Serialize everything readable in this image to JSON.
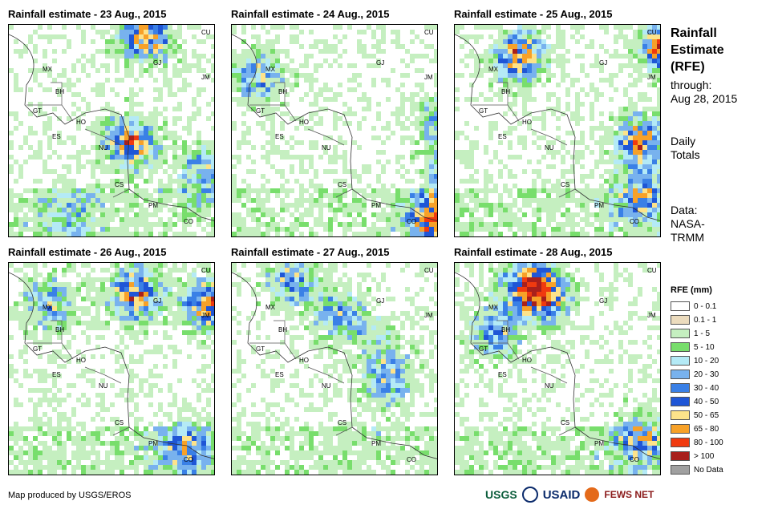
{
  "panels": [
    {
      "title": "Rainfall estimate - 23 Aug., 2015"
    },
    {
      "title": "Rainfall estimate - 24 Aug., 2015"
    },
    {
      "title": "Rainfall estimate - 25 Aug., 2015"
    },
    {
      "title": "Rainfall estimate - 26 Aug., 2015"
    },
    {
      "title": "Rainfall estimate - 27 Aug., 2015"
    },
    {
      "title": "Rainfall estimate - 28 Aug., 2015"
    }
  ],
  "country_labels": [
    "CU",
    "GJ",
    "JM",
    "MX",
    "BH",
    "GT",
    "HO",
    "ES",
    "NU",
    "CS",
    "PM",
    "CO"
  ],
  "sidebar": {
    "title_lines": [
      "Rainfall",
      "Estimate",
      "(RFE)"
    ],
    "through_label": "through:",
    "through_date": "Aug 28, 2015",
    "daily_lines": [
      "Daily",
      "Totals"
    ],
    "data_lines": [
      "Data:",
      "NASA-",
      "TRMM"
    ]
  },
  "legend": {
    "title": "RFE (mm)",
    "items": [
      {
        "label": "0 - 0.1",
        "color": "#ffffff"
      },
      {
        "label": "0.1 - 1",
        "color": "#ecdcbe"
      },
      {
        "label": "1 - 5",
        "color": "#c5efc0"
      },
      {
        "label": "5 - 10",
        "color": "#78de6c"
      },
      {
        "label": "10 - 20",
        "color": "#b4eaf6"
      },
      {
        "label": "20 - 30",
        "color": "#78b2ee"
      },
      {
        "label": "30 - 40",
        "color": "#3a80e6"
      },
      {
        "label": "40 - 50",
        "color": "#1f56d6"
      },
      {
        "label": "50 - 65",
        "color": "#fde38a"
      },
      {
        "label": "65 - 80",
        "color": "#f7a128"
      },
      {
        "label": "80 - 100",
        "color": "#f03a0f"
      },
      {
        "label": "> 100",
        "color": "#a8201c"
      },
      {
        "label": "No Data",
        "color": "#a0a0a0"
      }
    ]
  },
  "credit": "Map produced by USGS/EROS",
  "logos": {
    "usgs": "USGS",
    "usaid": "USAID",
    "fews": "FEWS NET"
  }
}
